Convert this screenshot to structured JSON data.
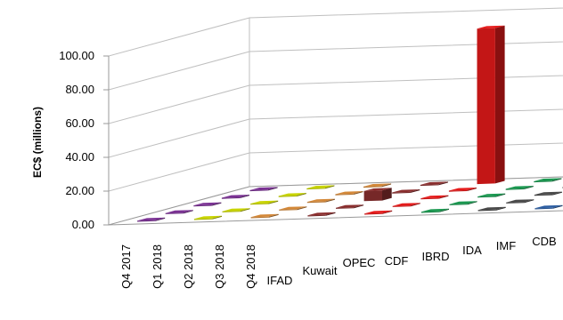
{
  "chart_data": {
    "type": "bar",
    "subtype": "3d-column",
    "ylabel": "EC$ (millions)",
    "ylim": [
      0,
      100
    ],
    "yticks": [
      "0.00",
      "20.00",
      "40.00",
      "60.00",
      "80.00",
      "100.00"
    ],
    "periods": [
      "Q4 2017",
      "Q1 2018",
      "Q2 2018",
      "Q3 2018",
      "Q4 2018"
    ],
    "categories": [
      "IFAD",
      "Kuwait",
      "OPEC",
      "CDF",
      "IBRD",
      "IDA",
      "IMF",
      "CDB"
    ],
    "colors": {
      "IFAD": "#7b3294",
      "Kuwait": "#c8d400",
      "OPEC": "#d4893a",
      "CDF": "#8b2f2f",
      "IBRD": "#e51a1a",
      "IDA": "#1a9850",
      "IMF": "#4a4a4a",
      "CDB": "#2e5fa3",
      "extra": "#e6e6cc"
    },
    "series": [
      {
        "name": "Q4 2017",
        "values": [
          0.0,
          0.0,
          0.0,
          0.0,
          0.0,
          0.0,
          0.0,
          0.0
        ]
      },
      {
        "name": "Q1 2018",
        "values": [
          0.0,
          0.0,
          0.0,
          0.0,
          0.0,
          0.0,
          0.0,
          4.5
        ]
      },
      {
        "name": "Q2 2018",
        "values": [
          0.0,
          0.0,
          0.0,
          6.0,
          0.0,
          0.0,
          0.0,
          0.0
        ]
      },
      {
        "name": "Q3 2018",
        "values": [
          0.0,
          0.0,
          0.0,
          0.0,
          0.0,
          0.0,
          0.0,
          6.0
        ]
      },
      {
        "name": "Q4 2018",
        "values": [
          0.0,
          0.0,
          0.0,
          0.0,
          92.0,
          0.0,
          0.0,
          0.0
        ]
      }
    ],
    "grid": true,
    "legend": "none"
  }
}
